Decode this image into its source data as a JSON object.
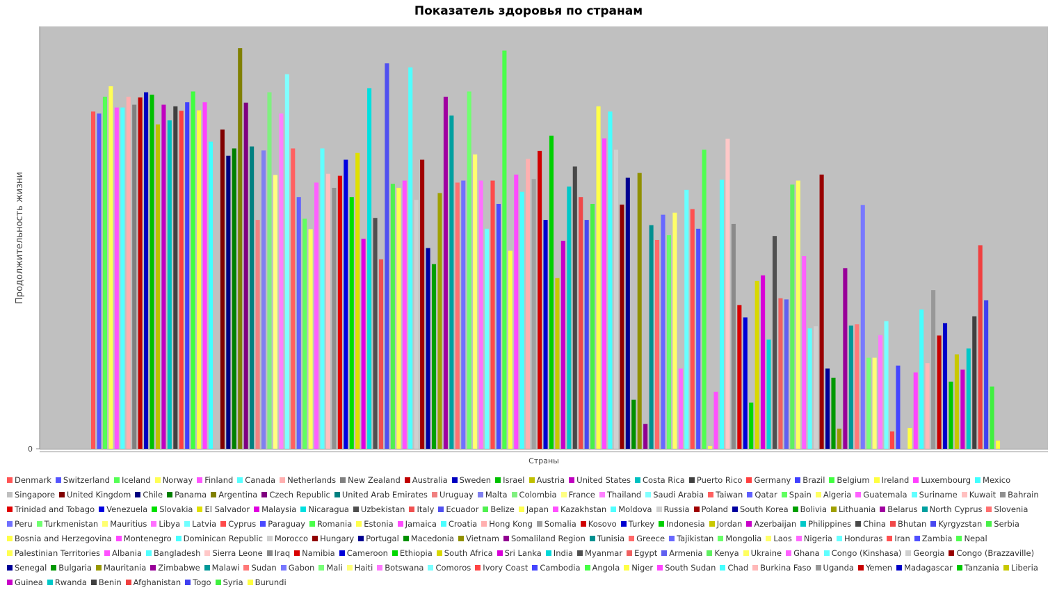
{
  "chart_data": {
    "type": "bar",
    "title": "Показатель здоровья по странам",
    "xlabel": "Страны",
    "ylabel": "Продолжительность жизни",
    "y_tick_labels": [
      "0"
    ],
    "background": "#c0c0c0",
    "legend_position": "bottom",
    "series": [
      {
        "name": "Denmark",
        "value": 0.84,
        "color": "#ff5555"
      },
      {
        "name": "Switzerland",
        "value": 0.835,
        "color": "#5555ff"
      },
      {
        "name": "Iceland",
        "value": 0.877,
        "color": "#55ff55"
      },
      {
        "name": "Norway",
        "value": 0.903,
        "color": "#ffff55"
      },
      {
        "name": "Finland",
        "value": 0.85,
        "color": "#ff55ff"
      },
      {
        "name": "Canada",
        "value": 0.85,
        "color": "#55ffff"
      },
      {
        "name": "Netherlands",
        "value": 0.877,
        "color": "#ffafaf"
      },
      {
        "name": "New Zealand",
        "value": 0.857,
        "color": "#808080"
      },
      {
        "name": "Australia",
        "value": 0.875,
        "color": "#c00000"
      },
      {
        "name": "Sweden",
        "value": 0.888,
        "color": "#0000c0"
      },
      {
        "name": "Israel",
        "value": 0.882,
        "color": "#00c000"
      },
      {
        "name": "Austria",
        "value": 0.808,
        "color": "#c0c000"
      },
      {
        "name": "United States",
        "value": 0.857,
        "color": "#c000c0"
      },
      {
        "name": "Costa Rica",
        "value": 0.818,
        "color": "#00c0c0"
      },
      {
        "name": "Puerto Rico",
        "value": 0.853,
        "color": "#404040"
      },
      {
        "name": "Germany",
        "value": 0.842,
        "color": "#ff4040"
      },
      {
        "name": "Brazil",
        "value": 0.863,
        "color": "#4040ff"
      },
      {
        "name": "Belgium",
        "value": 0.89,
        "color": "#40ff40"
      },
      {
        "name": "Ireland",
        "value": 0.843,
        "color": "#ffff40"
      },
      {
        "name": "Luxembourg",
        "value": 0.863,
        "color": "#ff40ff"
      },
      {
        "name": "Mexico",
        "value": 0.765,
        "color": "#40ffff"
      },
      {
        "name": "Singapore",
        "value": 0.653,
        "color": "#c0c0c0"
      },
      {
        "name": "United Kingdom",
        "value": 0.795,
        "color": "#800000"
      },
      {
        "name": "Chile",
        "value": 0.73,
        "color": "#000080"
      },
      {
        "name": "Panama",
        "value": 0.748,
        "color": "#008000"
      },
      {
        "name": "Argentina",
        "value": 0.998,
        "color": "#808000"
      },
      {
        "name": "Czech Republic",
        "value": 0.862,
        "color": "#800080"
      },
      {
        "name": "United Arab Emirates",
        "value": 0.753,
        "color": "#008080"
      },
      {
        "name": "Uruguay",
        "value": 0.57,
        "color": "#f08080"
      },
      {
        "name": "Malta",
        "value": 0.743,
        "color": "#8080f0"
      },
      {
        "name": "Colombia",
        "value": 0.888,
        "color": "#80f080"
      },
      {
        "name": "France",
        "value": 0.682,
        "color": "#ffff80"
      },
      {
        "name": "Thailand",
        "value": 0.835,
        "color": "#ff80ff"
      },
      {
        "name": "Saudi Arabia",
        "value": 0.933,
        "color": "#80ffff"
      },
      {
        "name": "Taiwan",
        "value": 0.748,
        "color": "#ff6060"
      },
      {
        "name": "Qatar",
        "value": 0.627,
        "color": "#6060ff"
      },
      {
        "name": "Spain",
        "value": 0.573,
        "color": "#60ff60"
      },
      {
        "name": "Algeria",
        "value": 0.547,
        "color": "#ffff60"
      },
      {
        "name": "Guatemala",
        "value": 0.663,
        "color": "#ff60ff"
      },
      {
        "name": "Suriname",
        "value": 0.748,
        "color": "#60ffff"
      },
      {
        "name": "Kuwait",
        "value": 0.685,
        "color": "#ffc0c0"
      },
      {
        "name": "Bahrain",
        "value": 0.65,
        "color": "#909090"
      },
      {
        "name": "Trinidad and Tobago",
        "value": 0.68,
        "color": "#e00000"
      },
      {
        "name": "Venezuela",
        "value": 0.72,
        "color": "#0000e0"
      },
      {
        "name": "Slovakia",
        "value": 0.627,
        "color": "#00e000"
      },
      {
        "name": "El Salvador",
        "value": 0.737,
        "color": "#e0e000"
      },
      {
        "name": "Malaysia",
        "value": 0.523,
        "color": "#e000e0"
      },
      {
        "name": "Nicaragua",
        "value": 0.898,
        "color": "#00e0e0"
      },
      {
        "name": "Uzbekistan",
        "value": 0.575,
        "color": "#505050"
      },
      {
        "name": "Italy",
        "value": 0.472,
        "color": "#f05050"
      },
      {
        "name": "Ecuador",
        "value": 0.96,
        "color": "#5050f0"
      },
      {
        "name": "Belize",
        "value": 0.66,
        "color": "#50f050"
      },
      {
        "name": "Japan",
        "value": 0.65,
        "color": "#ffff50"
      },
      {
        "name": "Kazakhstan",
        "value": 0.668,
        "color": "#ff50ff"
      },
      {
        "name": "Moldova",
        "value": 0.95,
        "color": "#50ffff"
      },
      {
        "name": "Russia",
        "value": 0.62,
        "color": "#d0d0d0"
      },
      {
        "name": "Poland",
        "value": 0.72,
        "color": "#a00000"
      },
      {
        "name": "South Korea",
        "value": 0.5,
        "color": "#0000a0"
      },
      {
        "name": "Bolivia",
        "value": 0.46,
        "color": "#00a000"
      },
      {
        "name": "Lithuania",
        "value": 0.637,
        "color": "#a0a000"
      },
      {
        "name": "Belarus",
        "value": 0.877,
        "color": "#a000a0"
      },
      {
        "name": "North Cyprus",
        "value": 0.83,
        "color": "#00a0a0"
      },
      {
        "name": "Slovenia",
        "value": 0.663,
        "color": "#ff7070"
      },
      {
        "name": "Peru",
        "value": 0.668,
        "color": "#7070ff"
      },
      {
        "name": "Turkmenistan",
        "value": 0.89,
        "color": "#70ff70"
      },
      {
        "name": "Mauritius",
        "value": 0.733,
        "color": "#ffff70"
      },
      {
        "name": "Libya",
        "value": 0.668,
        "color": "#ff70ff"
      },
      {
        "name": "Latvia",
        "value": 0.548,
        "color": "#70ffff"
      },
      {
        "name": "Cyprus",
        "value": 0.668,
        "color": "#ff4a4a"
      },
      {
        "name": "Paraguay",
        "value": 0.61,
        "color": "#4a4aff"
      },
      {
        "name": "Romania",
        "value": 0.992,
        "color": "#4aff4a"
      },
      {
        "name": "Estonia",
        "value": 0.493,
        "color": "#ffff4a"
      },
      {
        "name": "Jamaica",
        "value": 0.683,
        "color": "#ff4aff"
      },
      {
        "name": "Croatia",
        "value": 0.64,
        "color": "#4affff"
      },
      {
        "name": "Hong Kong",
        "value": 0.722,
        "color": "#ffb0b0"
      },
      {
        "name": "Somalia",
        "value": 0.672,
        "color": "#a0a0a0"
      },
      {
        "name": "Kosovo",
        "value": 0.742,
        "color": "#d00000"
      },
      {
        "name": "Turkey",
        "value": 0.57,
        "color": "#0000d0"
      },
      {
        "name": "Indonesia",
        "value": 0.78,
        "color": "#00d000"
      },
      {
        "name": "Jordan",
        "value": 0.425,
        "color": "#c8c800"
      },
      {
        "name": "Azerbaijan",
        "value": 0.518,
        "color": "#c800c8"
      },
      {
        "name": "Philippines",
        "value": 0.653,
        "color": "#00c8c8"
      },
      {
        "name": "China",
        "value": 0.703,
        "color": "#484848"
      },
      {
        "name": "Bhutan",
        "value": 0.627,
        "color": "#f04848"
      },
      {
        "name": "Kyrgyzstan",
        "value": 0.57,
        "color": "#4848f0"
      },
      {
        "name": "Serbia",
        "value": 0.61,
        "color": "#48f048"
      },
      {
        "name": "Bosnia and Herzegovina",
        "value": 0.853,
        "color": "#ffff48"
      },
      {
        "name": "Montenegro",
        "value": 0.773,
        "color": "#ff48ff"
      },
      {
        "name": "Dominican Republic",
        "value": 0.84,
        "color": "#48ffff"
      },
      {
        "name": "Morocco",
        "value": 0.745,
        "color": "#d0d0d0"
      },
      {
        "name": "Hungary",
        "value": 0.608,
        "color": "#900000"
      },
      {
        "name": "Portugal",
        "value": 0.675,
        "color": "#000090"
      },
      {
        "name": "Macedonia",
        "value": 0.122,
        "color": "#009000"
      },
      {
        "name": "Vietnam",
        "value": 0.687,
        "color": "#909000"
      },
      {
        "name": "Somaliland Region",
        "value": 0.062,
        "color": "#900090"
      },
      {
        "name": "Tunisia",
        "value": 0.557,
        "color": "#009090"
      },
      {
        "name": "Greece",
        "value": 0.52,
        "color": "#ff6868"
      },
      {
        "name": "Tajikistan",
        "value": 0.583,
        "color": "#6868ff"
      },
      {
        "name": "Mongolia",
        "value": 0.532,
        "color": "#68ff68"
      },
      {
        "name": "Laos",
        "value": 0.588,
        "color": "#ffff68"
      },
      {
        "name": "Nigeria",
        "value": 0.2,
        "color": "#ff68ff"
      },
      {
        "name": "Honduras",
        "value": 0.645,
        "color": "#68ffff"
      },
      {
        "name": "Iran",
        "value": 0.597,
        "color": "#ff5050"
      },
      {
        "name": "Zambia",
        "value": 0.548,
        "color": "#5050ff"
      },
      {
        "name": "Nepal",
        "value": 0.745,
        "color": "#50ff50"
      },
      {
        "name": "Palestinian Territories",
        "value": 0.007,
        "color": "#ffff50"
      },
      {
        "name": "Albania",
        "value": 0.142,
        "color": "#ff50ff"
      },
      {
        "name": "Bangladesh",
        "value": 0.67,
        "color": "#50ffff"
      },
      {
        "name": "Sierra Leone",
        "value": 0.772,
        "color": "#ffc8c8"
      },
      {
        "name": "Iraq",
        "value": 0.56,
        "color": "#8a8a8a"
      },
      {
        "name": "Namibia",
        "value": 0.358,
        "color": "#d80000"
      },
      {
        "name": "Cameroon",
        "value": 0.327,
        "color": "#0000d8"
      },
      {
        "name": "Ethiopia",
        "value": 0.115,
        "color": "#00d800"
      },
      {
        "name": "South Africa",
        "value": 0.418,
        "color": "#d8d800"
      },
      {
        "name": "Sri Lanka",
        "value": 0.432,
        "color": "#d800d8"
      },
      {
        "name": "India",
        "value": 0.272,
        "color": "#00d8d8"
      },
      {
        "name": "Myanmar",
        "value": 0.53,
        "color": "#505050"
      },
      {
        "name": "Egypt",
        "value": 0.375,
        "color": "#f06060"
      },
      {
        "name": "Armenia",
        "value": 0.372,
        "color": "#6060f0"
      },
      {
        "name": "Kenya",
        "value": 0.658,
        "color": "#60f060"
      },
      {
        "name": "Ukraine",
        "value": 0.668,
        "color": "#ffff60"
      },
      {
        "name": "Ghana",
        "value": 0.48,
        "color": "#ff60ff"
      },
      {
        "name": "Congo (Kinshasa)",
        "value": 0.3,
        "color": "#60ffff"
      },
      {
        "name": "Georgia",
        "value": 0.305,
        "color": "#d0d0d0"
      },
      {
        "name": "Congo (Brazzaville)",
        "value": 0.683,
        "color": "#980000"
      },
      {
        "name": "Senegal",
        "value": 0.2,
        "color": "#000098"
      },
      {
        "name": "Bulgaria",
        "value": 0.177,
        "color": "#009800"
      },
      {
        "name": "Mauritania",
        "value": 0.05,
        "color": "#989800"
      },
      {
        "name": "Zimbabwe",
        "value": 0.45,
        "color": "#980098"
      },
      {
        "name": "Malawi",
        "value": 0.307,
        "color": "#009898"
      },
      {
        "name": "Sudan",
        "value": 0.31,
        "color": "#ff7878"
      },
      {
        "name": "Gabon",
        "value": 0.607,
        "color": "#7878ff"
      },
      {
        "name": "Mali",
        "value": 0.227,
        "color": "#78ff78"
      },
      {
        "name": "Haiti",
        "value": 0.227,
        "color": "#ffff78"
      },
      {
        "name": "Botswana",
        "value": 0.283,
        "color": "#ff78ff"
      },
      {
        "name": "Comoros",
        "value": 0.318,
        "color": "#78ffff"
      },
      {
        "name": "Ivory Coast",
        "value": 0.043,
        "color": "#ff4545"
      },
      {
        "name": "Cambodia",
        "value": 0.207,
        "color": "#4545ff"
      },
      {
        "name": "Angola",
        "value": 0.0,
        "color": "#45ff45"
      },
      {
        "name": "Niger",
        "value": 0.052,
        "color": "#ffff45"
      },
      {
        "name": "South Sudan",
        "value": 0.19,
        "color": "#ff45ff"
      },
      {
        "name": "Chad",
        "value": 0.347,
        "color": "#45ffff"
      },
      {
        "name": "Burkina Faso",
        "value": 0.213,
        "color": "#ffb8b8"
      },
      {
        "name": "Uganda",
        "value": 0.395,
        "color": "#989898"
      },
      {
        "name": "Yemen",
        "value": 0.282,
        "color": "#c80000"
      },
      {
        "name": "Madagascar",
        "value": 0.313,
        "color": "#0000c8"
      },
      {
        "name": "Tanzania",
        "value": 0.167,
        "color": "#00c800"
      },
      {
        "name": "Liberia",
        "value": 0.235,
        "color": "#c8c800"
      },
      {
        "name": "Guinea",
        "value": 0.197,
        "color": "#c800c8"
      },
      {
        "name": "Rwanda",
        "value": 0.25,
        "color": "#00c8c8"
      },
      {
        "name": "Benin",
        "value": 0.33,
        "color": "#404040"
      },
      {
        "name": "Afghanistan",
        "value": 0.507,
        "color": "#f04040"
      },
      {
        "name": "Togo",
        "value": 0.37,
        "color": "#4040f0"
      },
      {
        "name": "Syria",
        "value": 0.155,
        "color": "#40f040"
      },
      {
        "name": "Burundi",
        "value": 0.02,
        "color": "#ffff40"
      }
    ]
  }
}
